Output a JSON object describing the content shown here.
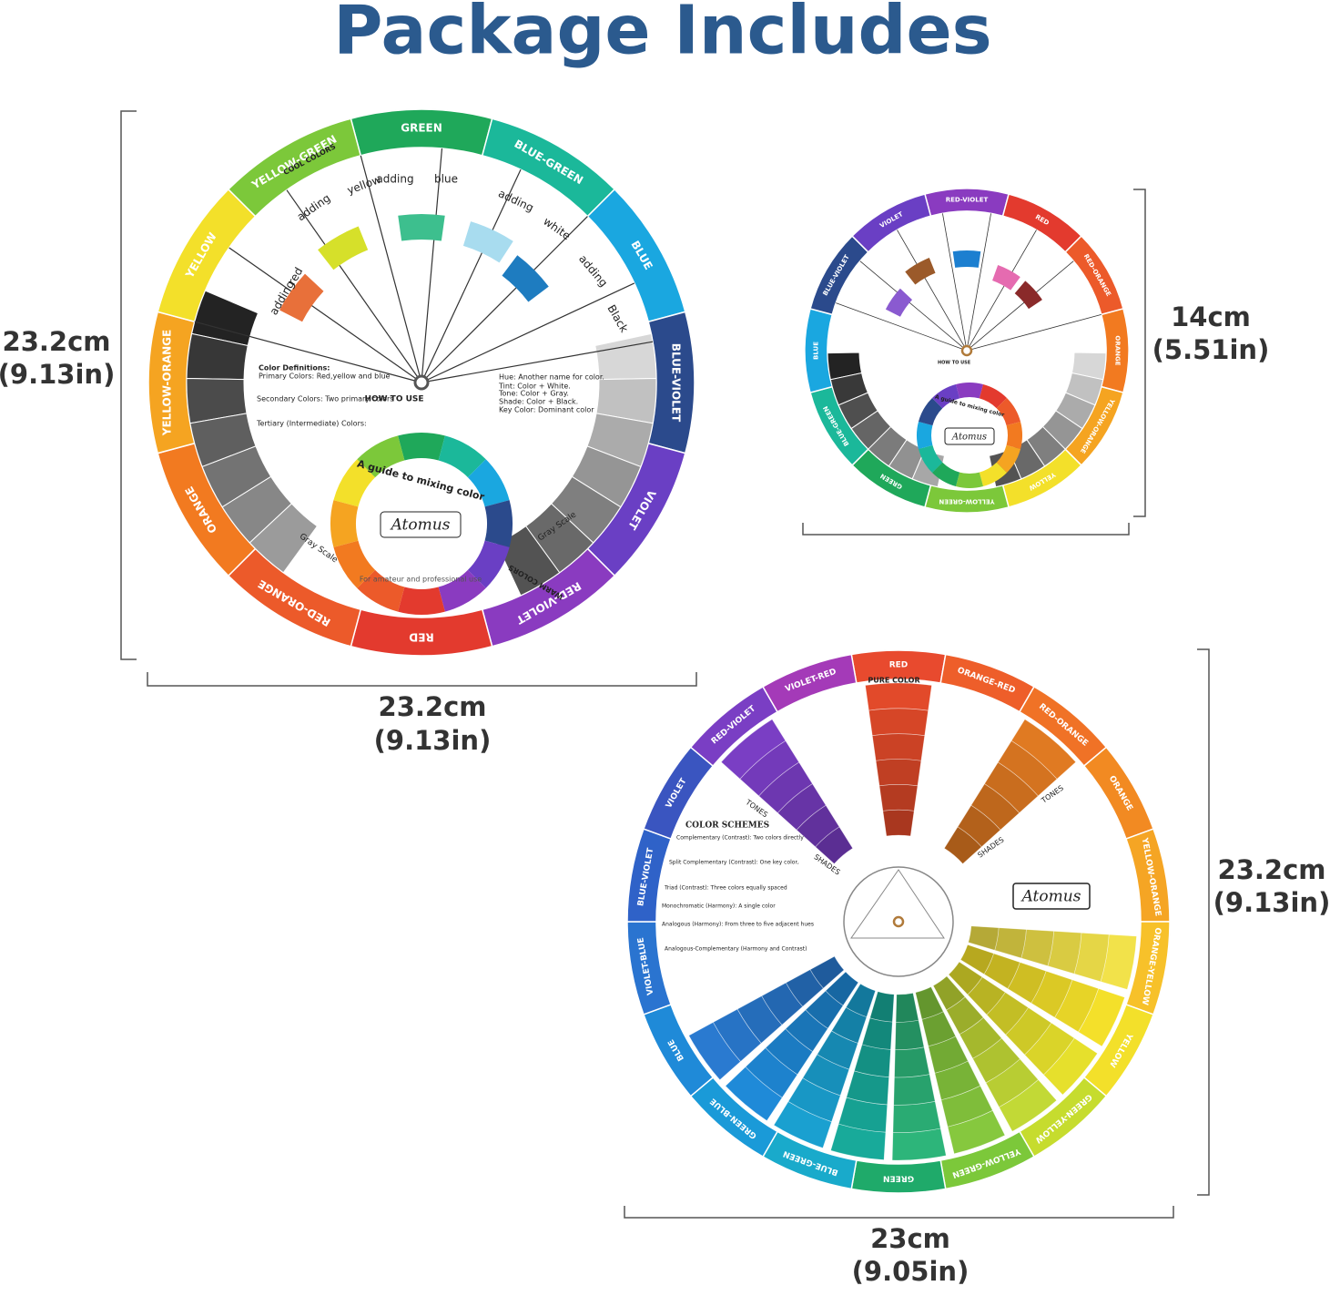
{
  "title": "Package Includes",
  "dimensions": [
    [
      "23.2cm",
      "(9.13in)"
    ],
    [
      "23.2cm",
      "(9.13in)"
    ],
    [
      "14cm",
      "(5.51in)"
    ],
    [
      "23.2cm",
      "(9.13in)"
    ],
    [
      "23cm",
      "(9.05in)"
    ]
  ],
  "wheels": [
    {
      "segments": [
        {
          "label": "GREEN",
          "color": "#1fa85a"
        },
        {
          "label": "BLUE-GREEN",
          "color": "#1bb89a"
        },
        {
          "label": "BLUE",
          "color": "#1aa7e0"
        },
        {
          "label": "BLUE-VIOLET",
          "color": "#2b4a8c"
        },
        {
          "label": "VIOLET",
          "color": "#6a3fc4"
        },
        {
          "label": "RED-VIOLET",
          "color": "#8a3bc0"
        },
        {
          "label": "RED",
          "color": "#e33a2e"
        },
        {
          "label": "RED-ORANGE",
          "color": "#ec5a2a"
        },
        {
          "label": "ORANGE",
          "color": "#f27a20"
        },
        {
          "label": "YELLOW-ORANGE",
          "color": "#f5a421"
        },
        {
          "label": "YELLOW",
          "color": "#f3e02a"
        },
        {
          "label": "YELLOW-GREEN",
          "color": "#7cc83a"
        }
      ],
      "texts": [
        "adding",
        "red",
        "adding",
        "yellow",
        "adding",
        "blue",
        "adding",
        "white",
        "adding",
        "Black",
        "HOW TO USE",
        "Atomus",
        "Color Definitions:",
        "Primary Colors: Red,yellow and blue",
        "Secondary Colors: Two primary colors",
        "Tertiary (Intermediate) Colors:",
        "Hue: Another name for color.",
        "Tint: Color + White.",
        "Tone: Color + Gray.",
        "Shade: Color + Black.",
        "Key Color: Dominant color",
        "Gray Scale",
        "Gray Scale",
        "A guide to mixing color",
        "For amateur and professional use",
        "COOL COLORS",
        "WARM COLORS"
      ]
    },
    {
      "segments": [
        {
          "label": "RED-VIOLET",
          "color": "#8a3bc0"
        },
        {
          "label": "RED",
          "color": "#e33a2e"
        },
        {
          "label": "RED-ORANGE",
          "color": "#ec5a2a"
        },
        {
          "label": "ORANGE",
          "color": "#f27a20"
        },
        {
          "label": "YELLOW-ORANGE",
          "color": "#f5a421"
        },
        {
          "label": "YELLOW",
          "color": "#f3e02a"
        },
        {
          "label": "YELLOW-GREEN",
          "color": "#7cc83a"
        },
        {
          "label": "GREEN",
          "color": "#1fa85a"
        },
        {
          "label": "BLUE-GREEN",
          "color": "#1bb89a"
        },
        {
          "label": "BLUE",
          "color": "#1aa7e0"
        },
        {
          "label": "BLUE-VIOLET",
          "color": "#2b4a8c"
        },
        {
          "label": "VIOLET",
          "color": "#6a3fc4"
        }
      ],
      "texts": [
        "HOW TO USE",
        "Atomus",
        "A guide to mixing color"
      ]
    },
    {
      "segments": [
        {
          "label": "RED",
          "color": "#e84a2e"
        },
        {
          "label": "ORANGE-RED",
          "color": "#ee5e2a"
        },
        {
          "label": "RED-ORANGE",
          "color": "#f07226"
        },
        {
          "label": "ORANGE",
          "color": "#f28a22"
        },
        {
          "label": "YELLOW-ORANGE",
          "color": "#f5a524"
        },
        {
          "label": "ORANGE-YELLOW",
          "color": "#f7c12a"
        },
        {
          "label": "YELLOW",
          "color": "#f3e02a"
        },
        {
          "label": "GREEN-YELLOW",
          "color": "#c6dc2e"
        },
        {
          "label": "YELLOW-GREEN",
          "color": "#7cc83a"
        },
        {
          "label": "GREEN",
          "color": "#1faa6a"
        },
        {
          "label": "BLUE-GREEN",
          "color": "#19aacb"
        },
        {
          "label": "GREEN-BLUE",
          "color": "#1a9ad8"
        },
        {
          "label": "BLUE",
          "color": "#1f8ad8"
        },
        {
          "label": "VIOLET-BLUE",
          "color": "#2a74d0"
        },
        {
          "label": "BLUE-VIOLET",
          "color": "#2f62c8"
        },
        {
          "label": "VIOLET",
          "color": "#3a55c0"
        },
        {
          "label": "RED-VIOLET",
          "color": "#7a3ec4"
        },
        {
          "label": "VIOLET-RED",
          "color": "#a43ab8"
        }
      ],
      "wedges": [
        "#e24a2a",
        "#e07a22",
        "#f2e24a",
        "#f4e02a",
        "#e6e02c",
        "#c2d936",
        "#86c83e",
        "#2db57a",
        "#18aa9a",
        "#1aa0d0",
        "#1f8ad8",
        "#2a7ad0",
        "#7a3ec4"
      ],
      "texts": [
        "PURE COLOR",
        "TONES",
        "SHADES",
        "TONES",
        "SHADES",
        "COLOR SCHEMES",
        "Complementary (Contrast): Two colors directly",
        "Split Complementary (Contrast): One key color,",
        "Triad (Contrast): Three colors equally spaced",
        "Monochromatic (Harmony): A single color",
        "Analogous (Harmony): From three to five adjacent hues",
        "Analogous-Complementary (Harmony and Contrast)",
        "Atomus"
      ]
    }
  ]
}
